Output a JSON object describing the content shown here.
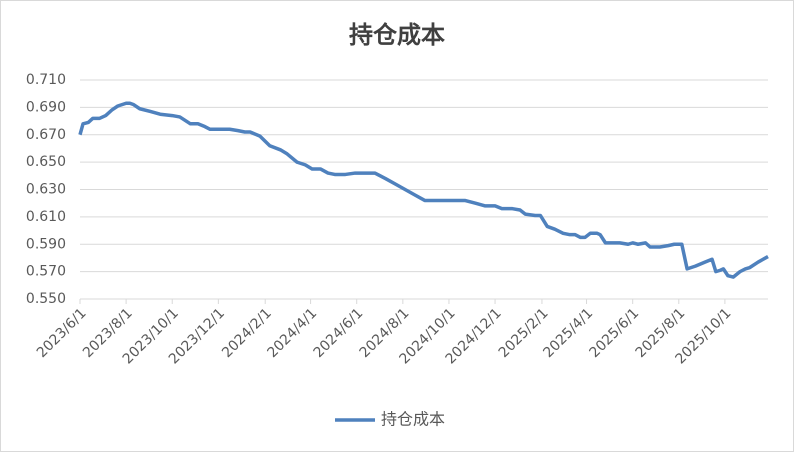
{
  "chart_data": {
    "type": "line",
    "title": "持仓成本",
    "x": [
      "2023/6/1",
      "2023/6/5",
      "2023/6/12",
      "2023/6/18",
      "2023/6/27",
      "2023/7/5",
      "2023/7/13",
      "2023/7/21",
      "2023/8/1",
      "2023/8/6",
      "2023/8/11",
      "2023/8/19",
      "2023/9/2",
      "2023/9/15",
      "2023/10/1",
      "2023/10/11",
      "2023/10/25",
      "2023/11/4",
      "2023/11/13",
      "2023/11/20",
      "2023/12/16",
      "2023/12/27",
      "2024/1/5",
      "2024/1/12",
      "2024/1/25",
      "2024/2/7",
      "2024/2/21",
      "2024/3/1",
      "2024/3/14",
      "2024/3/25",
      "2024/4/3",
      "2024/4/14",
      "2024/4/24",
      "2024/5/3",
      "2024/5/17",
      "2024/5/30",
      "2024/6/25",
      "2024/7/9",
      "2024/7/22",
      "2024/8/4",
      "2024/8/17",
      "2024/8/30",
      "2024/10/22",
      "2024/11/5",
      "2024/11/18",
      "2024/12/1",
      "2024/12/10",
      "2024/12/24",
      "2025/1/3",
      "2025/1/10",
      "2025/1/23",
      "2025/1/30",
      "2025/2/8",
      "2025/2/18",
      "2025/3/1",
      "2025/3/10",
      "2025/3/17",
      "2025/3/24",
      "2025/3/30",
      "2025/4/6",
      "2025/4/15",
      "2025/4/19",
      "2025/4/26",
      "2025/5/15",
      "2025/5/26",
      "2025/6/1",
      "2025/6/8",
      "2025/6/18",
      "2025/6/24",
      "2025/7/7",
      "2025/7/18",
      "2025/7/26",
      "2025/8/5",
      "2025/8/12",
      "2025/8/23",
      "2025/9/5",
      "2025/9/14",
      "2025/9/19",
      "2025/9/25",
      "2025/9/29",
      "2025/10/5",
      "2025/10/12",
      "2025/10/21",
      "2025/10/28",
      "2025/11/3",
      "2025/11/14",
      "2025/11/27"
    ],
    "series": [
      {
        "name": "持仓成本",
        "color": "#4f81bd",
        "values": [
          0.67,
          0.678,
          0.679,
          0.682,
          0.682,
          0.684,
          0.688,
          0.691,
          0.693,
          0.693,
          0.692,
          0.689,
          0.687,
          0.685,
          0.684,
          0.683,
          0.678,
          0.678,
          0.676,
          0.674,
          0.674,
          0.673,
          0.672,
          0.672,
          0.669,
          0.662,
          0.659,
          0.656,
          0.65,
          0.648,
          0.645,
          0.645,
          0.642,
          0.641,
          0.641,
          0.642,
          0.642,
          0.638,
          0.634,
          0.63,
          0.626,
          0.622,
          0.622,
          0.62,
          0.618,
          0.618,
          0.616,
          0.616,
          0.615,
          0.612,
          0.611,
          0.611,
          0.603,
          0.601,
          0.598,
          0.597,
          0.597,
          0.595,
          0.595,
          0.598,
          0.598,
          0.597,
          0.591,
          0.591,
          0.59,
          0.591,
          0.59,
          0.591,
          0.588,
          0.588,
          0.589,
          0.59,
          0.59,
          0.572,
          0.574,
          0.577,
          0.579,
          0.57,
          0.571,
          0.572,
          0.567,
          0.566,
          0.57,
          0.572,
          0.573,
          0.577,
          0.581
        ]
      }
    ],
    "xlim": [
      "2023/6/1",
      "2025/11/27"
    ],
    "xticks": [
      "2023/6/1",
      "2023/8/1",
      "2023/10/1",
      "2023/12/1",
      "2024/2/1",
      "2024/4/1",
      "2024/6/1",
      "2024/8/1",
      "2024/10/1",
      "2024/12/1",
      "2025/2/1",
      "2025/4/1",
      "2025/6/1",
      "2025/8/1",
      "2025/10/1"
    ],
    "ylim": [
      0.55,
      0.71
    ],
    "yticks": [
      {
        "value": 0.55,
        "label": "0.550"
      },
      {
        "value": 0.57,
        "label": "0.570"
      },
      {
        "value": 0.59,
        "label": "0.590"
      },
      {
        "value": 0.61,
        "label": "0.610"
      },
      {
        "value": 0.63,
        "label": "0.630"
      },
      {
        "value": 0.65,
        "label": "0.650"
      },
      {
        "value": 0.67,
        "label": "0.670"
      },
      {
        "value": 0.69,
        "label": "0.690"
      },
      {
        "value": 0.71,
        "label": "0.710"
      }
    ],
    "grid": true,
    "legend": "bottom"
  }
}
